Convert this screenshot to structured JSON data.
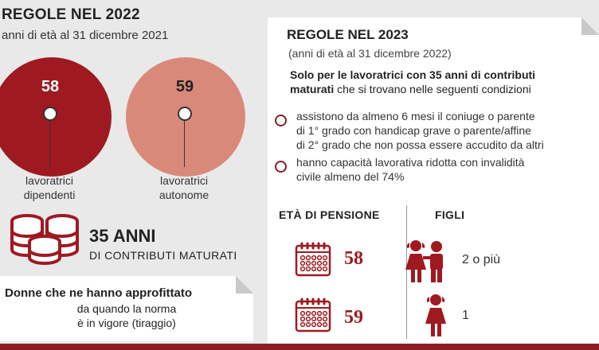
{
  "left": {
    "title": "REGOLE NEL 2022",
    "subtitle": "anni di età al 31 dicembre 2021",
    "groups": [
      {
        "age": "58",
        "label_l1": "lavoratrici",
        "label_l2": "dipendenti",
        "color": "#9e1a20"
      },
      {
        "age": "59",
        "label_l1": "lavoratrici",
        "label_l2": "autonome",
        "color": "#d9897a"
      }
    ],
    "contributions": {
      "main": "35 ANNI",
      "sub": "DI CONTRIBUTI MATURATI",
      "icon": "coin-stack-icon"
    },
    "note": {
      "bold": "Donne che ne hanno approfittato",
      "line2": "da quando la norma",
      "line3": "è in vigore (tiraggio)"
    }
  },
  "right": {
    "title": "REGOLE NEL 2023",
    "subtitle": "(anni di età al 31 dicembre 2022)",
    "intro_bold": "Solo per le lavoratrici con 35 anni di contributi maturati",
    "intro_rest": " che si trovano nelle seguenti condizioni",
    "conditions": [
      {
        "l1": "assistono da almeno 6 mesi il coniuge o parente",
        "l2": "di 1° grado con handicap grave o parente/affine",
        "l3": "di 2° grado che non possa essere accudito da altri"
      },
      {
        "l1": "hanno capacità lavorativa ridotta con invalidità",
        "l2": "civile almeno del 74%"
      }
    ],
    "col_age": "ETÀ DI PENSIONE",
    "col_children": "FIGLI",
    "rows": [
      {
        "age": "58",
        "children": "2 o più",
        "age_icon": "calendar-icon",
        "child_icon": "two-children-icon"
      },
      {
        "age": "59",
        "children": "1",
        "age_icon": "calendar-icon",
        "child_icon": "one-child-icon"
      }
    ]
  },
  "colors": {
    "dark_red": "#9e1a20",
    "salmon": "#d9897a",
    "background": "#e9e9e9"
  }
}
